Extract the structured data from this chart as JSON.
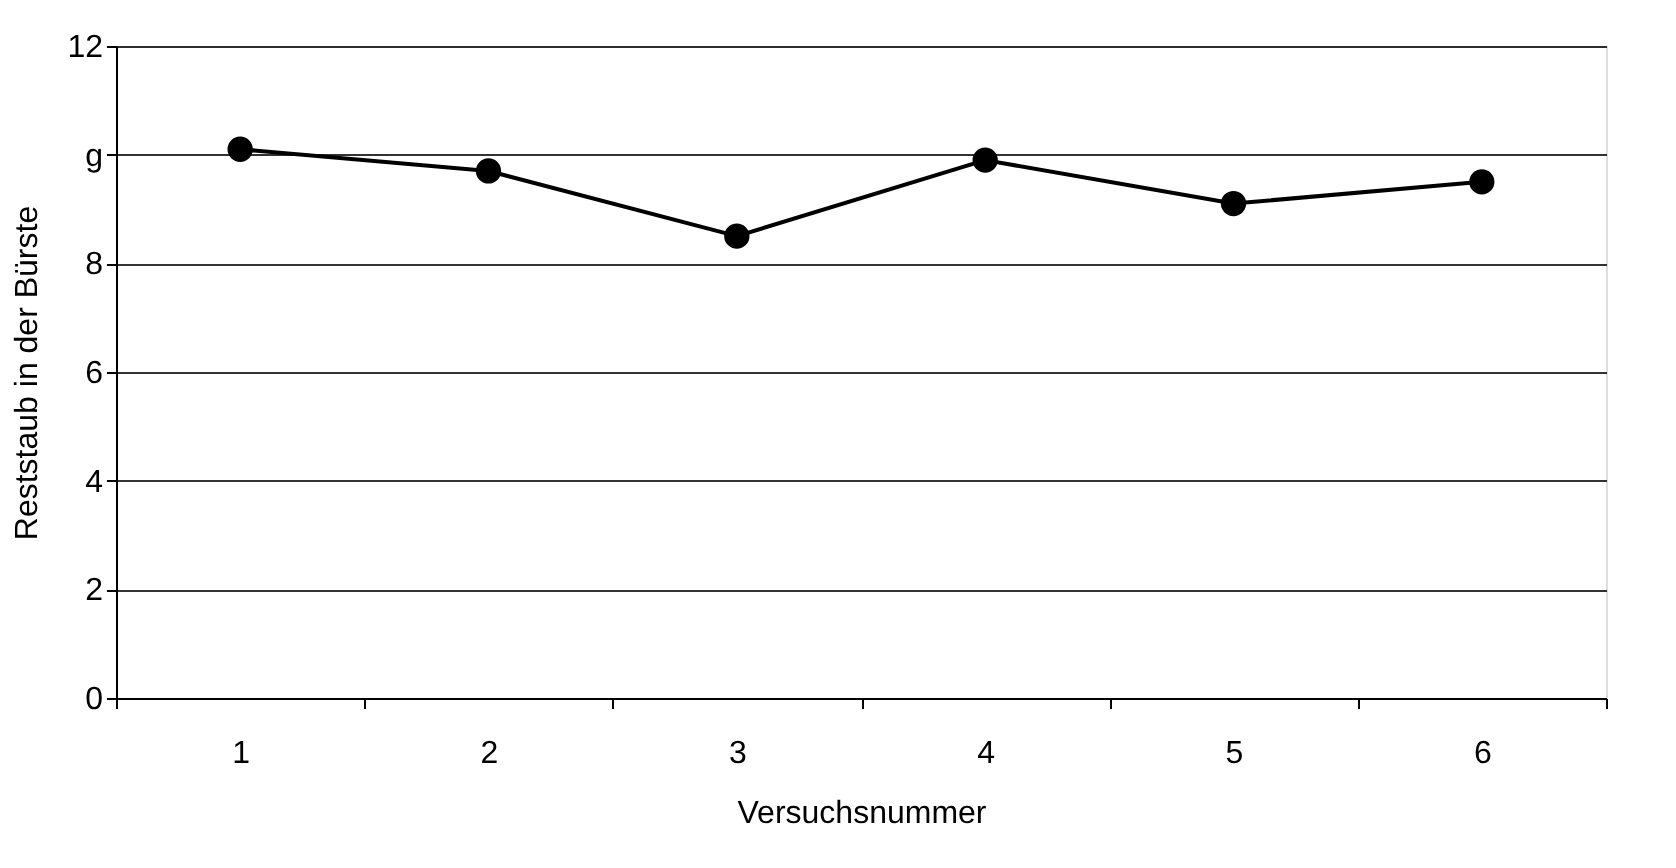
{
  "chart_data": {
    "type": "line",
    "xlabel": "Versuchsnummer",
    "ylabel": "Reststaub in der Bürste",
    "categories": [
      "1",
      "2",
      "3",
      "4",
      "5",
      "6"
    ],
    "series": [
      {
        "color": "#000000",
        "values": [
          10.1,
          9.7,
          8.5,
          9.9,
          9.1,
          9.5
        ]
      }
    ],
    "ylim": [
      0,
      12
    ],
    "yticks": [
      0,
      2,
      4,
      6,
      8,
      {
        "value": 10,
        "label": "g"
      },
      12
    ],
    "grid": "y",
    "marker": "circle",
    "line_style": "solid"
  }
}
